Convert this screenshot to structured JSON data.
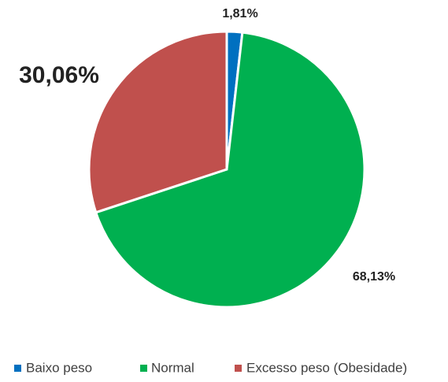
{
  "chart_data": {
    "type": "pie",
    "categories": [
      "Baixo peso",
      "Normal",
      "Excesso peso (Obesidade)"
    ],
    "values": [
      1.81,
      68.13,
      30.06
    ],
    "value_labels": [
      "1,81%",
      "68,13%",
      "30,06%"
    ],
    "colors": [
      "#0070c0",
      "#00b050",
      "#c0504d"
    ],
    "legend": "bottom"
  }
}
